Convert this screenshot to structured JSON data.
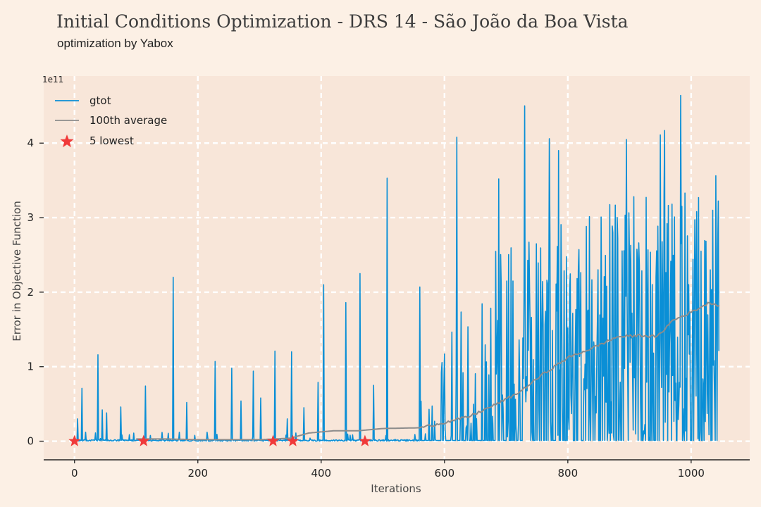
{
  "chart_data": {
    "type": "line",
    "title": "Initial Conditions Optimization - DRS 14 - São João da Boa Vista",
    "subtitle": "optimization by Yabox",
    "xlabel": "Iterations",
    "ylabel": "Error in Objective Function",
    "y_scale_label": "1e11",
    "xlim": [
      -50,
      1095
    ],
    "ylim": [
      -0.25,
      4.9
    ],
    "x_ticks": [
      0,
      200,
      400,
      600,
      800,
      1000
    ],
    "x_tick_labels": [
      "0",
      "200",
      "400",
      "600",
      "800",
      "1000"
    ],
    "y_ticks": [
      0,
      1,
      2,
      3,
      4
    ],
    "y_tick_labels": [
      "0",
      "1",
      "2",
      "3",
      "4"
    ],
    "grid": true,
    "legend_position": "top-left",
    "colors": {
      "gtot": "#0a8fd6",
      "average": "#8c8c8c",
      "lowest": "#f03a3a",
      "plot_bg": "#f8e6d9",
      "page_bg": "#fcf0e5"
    },
    "series": [
      {
        "name": "gtot",
        "kind": "line",
        "n_iterations": 1046,
        "spikes": [
          {
            "x": 5,
            "y": 0.3
          },
          {
            "x": 12,
            "y": 0.71
          },
          {
            "x": 18,
            "y": 0.12
          },
          {
            "x": 38,
            "y": 1.16
          },
          {
            "x": 45,
            "y": 0.42
          },
          {
            "x": 52,
            "y": 0.38
          },
          {
            "x": 75,
            "y": 0.46
          },
          {
            "x": 115,
            "y": 0.74
          },
          {
            "x": 160,
            "y": 2.2
          },
          {
            "x": 170,
            "y": 0.12
          },
          {
            "x": 182,
            "y": 0.52
          },
          {
            "x": 215,
            "y": 0.12
          },
          {
            "x": 228,
            "y": 1.07
          },
          {
            "x": 255,
            "y": 0.98
          },
          {
            "x": 270,
            "y": 0.54
          },
          {
            "x": 290,
            "y": 0.94
          },
          {
            "x": 302,
            "y": 0.58
          },
          {
            "x": 325,
            "y": 1.21
          },
          {
            "x": 345,
            "y": 0.3
          },
          {
            "x": 352,
            "y": 1.2
          },
          {
            "x": 372,
            "y": 0.45
          },
          {
            "x": 395,
            "y": 0.79
          },
          {
            "x": 404,
            "y": 2.1
          },
          {
            "x": 440,
            "y": 1.86
          },
          {
            "x": 463,
            "y": 2.25
          },
          {
            "x": 485,
            "y": 0.75
          },
          {
            "x": 507,
            "y": 3.53
          },
          {
            "x": 560,
            "y": 2.07
          },
          {
            "x": 620,
            "y": 4.08
          },
          {
            "x": 688,
            "y": 3.52
          },
          {
            "x": 730,
            "y": 4.5
          },
          {
            "x": 770,
            "y": 4.06
          },
          {
            "x": 785,
            "y": 3.9
          },
          {
            "x": 895,
            "y": 4.05
          },
          {
            "x": 950,
            "y": 4.11
          },
          {
            "x": 957,
            "y": 4.17
          },
          {
            "x": 983,
            "y": 4.64
          },
          {
            "x": 1035,
            "y": 3.1
          }
        ]
      },
      {
        "name": "100th average",
        "kind": "line",
        "points": [
          {
            "x": 100,
            "y": 0.03
          },
          {
            "x": 150,
            "y": 0.03
          },
          {
            "x": 200,
            "y": 0.02
          },
          {
            "x": 250,
            "y": 0.02
          },
          {
            "x": 300,
            "y": 0.02
          },
          {
            "x": 350,
            "y": 0.04
          },
          {
            "x": 380,
            "y": 0.11
          },
          {
            "x": 420,
            "y": 0.14
          },
          {
            "x": 460,
            "y": 0.14
          },
          {
            "x": 500,
            "y": 0.17
          },
          {
            "x": 560,
            "y": 0.18
          },
          {
            "x": 600,
            "y": 0.25
          },
          {
            "x": 640,
            "y": 0.33
          },
          {
            "x": 680,
            "y": 0.48
          },
          {
            "x": 720,
            "y": 0.65
          },
          {
            "x": 760,
            "y": 0.9
          },
          {
            "x": 800,
            "y": 1.12
          },
          {
            "x": 840,
            "y": 1.25
          },
          {
            "x": 880,
            "y": 1.4
          },
          {
            "x": 920,
            "y": 1.42
          },
          {
            "x": 945,
            "y": 1.4
          },
          {
            "x": 970,
            "y": 1.62
          },
          {
            "x": 1000,
            "y": 1.73
          },
          {
            "x": 1030,
            "y": 1.86
          },
          {
            "x": 1046,
            "y": 1.82
          }
        ]
      },
      {
        "name": "5 lowest",
        "kind": "scatter",
        "marker": "star",
        "points": [
          {
            "x": 0,
            "y": 0.0
          },
          {
            "x": 112,
            "y": 0.0
          },
          {
            "x": 322,
            "y": 0.0
          },
          {
            "x": 354,
            "y": 0.0
          },
          {
            "x": 471,
            "y": 0.0
          }
        ]
      }
    ],
    "legend": [
      "gtot",
      "100th average",
      "5 lowest"
    ]
  }
}
